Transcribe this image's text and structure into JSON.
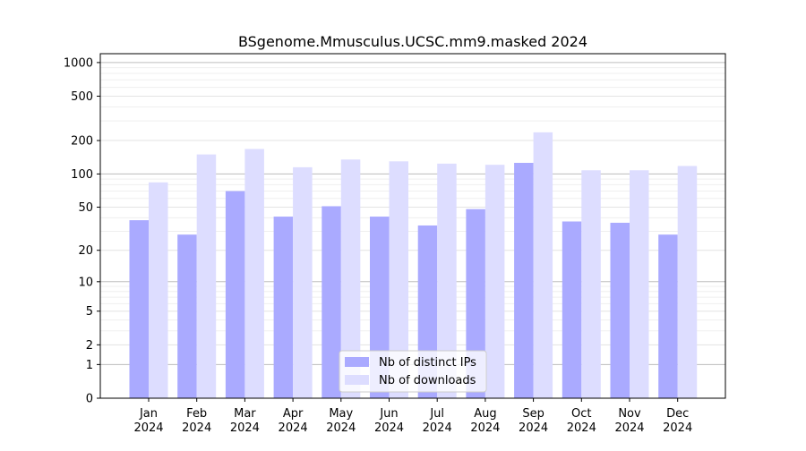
{
  "chart_data": {
    "type": "bar",
    "title": "BSgenome.Mmusculus.UCSC.mm9.masked 2024",
    "xlabel": "",
    "ylabel": "",
    "yscale": "log(1+y)",
    "ylim": [
      0,
      1200
    ],
    "yticks": [
      {
        "value": 0,
        "label": "0"
      },
      {
        "value": 1,
        "label": "1"
      },
      {
        "value": 2,
        "label": "2"
      },
      {
        "value": 5,
        "label": "5"
      },
      {
        "value": 10,
        "label": "10"
      },
      {
        "value": 20,
        "label": "20"
      },
      {
        "value": 50,
        "label": "50"
      },
      {
        "value": 100,
        "label": "100"
      },
      {
        "value": 200,
        "label": "200"
      },
      {
        "value": 500,
        "label": "500"
      },
      {
        "value": 1000,
        "label": "1000"
      }
    ],
    "categories": [
      {
        "month": "Jan",
        "year": "2024"
      },
      {
        "month": "Feb",
        "year": "2024"
      },
      {
        "month": "Mar",
        "year": "2024"
      },
      {
        "month": "Apr",
        "year": "2024"
      },
      {
        "month": "May",
        "year": "2024"
      },
      {
        "month": "Jun",
        "year": "2024"
      },
      {
        "month": "Jul",
        "year": "2024"
      },
      {
        "month": "Aug",
        "year": "2024"
      },
      {
        "month": "Sep",
        "year": "2024"
      },
      {
        "month": "Oct",
        "year": "2024"
      },
      {
        "month": "Nov",
        "year": "2024"
      },
      {
        "month": "Dec",
        "year": "2024"
      }
    ],
    "series": [
      {
        "name": "Nb of distinct IPs",
        "color": "#aaaaff",
        "values": [
          38,
          28,
          70,
          41,
          51,
          41,
          34,
          48,
          126,
          37,
          36,
          28
        ]
      },
      {
        "name": "Nb of downloads",
        "color": "#ddddff",
        "values": [
          84,
          150,
          168,
          115,
          135,
          130,
          124,
          121,
          237,
          108,
          108,
          118
        ]
      }
    ],
    "grid": true,
    "legend": "bottom-center"
  }
}
